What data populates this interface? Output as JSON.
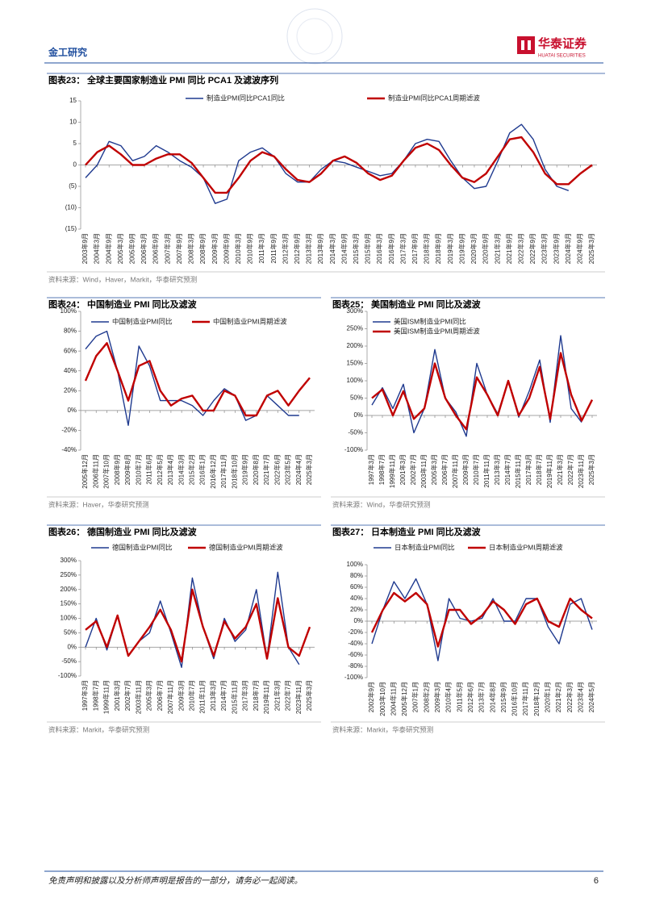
{
  "header": {
    "section": "金工研究",
    "logo_cn": "华泰证券",
    "logo_en": "HUATAI SECURITIES"
  },
  "chart_data": [
    {
      "type": "line",
      "label": "图表23：",
      "title": "全球主要国家制造业 PMI 同比 PCA1 及滤波序列",
      "source": "资料来源：Wind，Haver，Markit，华泰研究预测",
      "categories": [
        "2003年9月",
        "2004年3月",
        "2004年9月",
        "2005年3月",
        "2005年9月",
        "2006年3月",
        "2006年9月",
        "2007年3月",
        "2007年9月",
        "2008年3月",
        "2008年9月",
        "2009年3月",
        "2009年9月",
        "2010年3月",
        "2010年9月",
        "2011年3月",
        "2011年9月",
        "2012年3月",
        "2012年9月",
        "2013年3月",
        "2013年9月",
        "2014年3月",
        "2014年9月",
        "2015年3月",
        "2015年9月",
        "2016年3月",
        "2016年9月",
        "2017年3月",
        "2017年9月",
        "2018年3月",
        "2018年9月",
        "2019年3月",
        "2019年9月",
        "2020年3月",
        "2020年9月",
        "2021年3月",
        "2021年9月",
        "2022年3月",
        "2022年9月",
        "2023年3月",
        "2023年9月",
        "2024年3月",
        "2024年9月",
        "2025年3月"
      ],
      "series": [
        {
          "name": "制造业PMI同比PCA1同比",
          "color": "#1f3a8f",
          "values": [
            -3,
            0,
            5.5,
            4.5,
            1,
            2,
            4.5,
            3,
            1,
            -0.5,
            -3,
            -9,
            -8,
            1,
            3,
            4,
            2,
            -2,
            -4,
            -4,
            -1,
            1,
            0.5,
            -0.5,
            -1.5,
            -2.5,
            -2,
            1,
            5,
            6,
            5.5,
            1,
            -3,
            -5.5,
            -5,
            1,
            7.5,
            9.5,
            6,
            -1,
            -5,
            -6,
            null,
            null
          ]
        },
        {
          "name": "制造业PMI同比PCA1周期滤波",
          "color": "#c00000",
          "values": [
            0,
            3,
            4.5,
            2.5,
            0,
            0,
            1.5,
            2.5,
            2.5,
            0.5,
            -3,
            -6.5,
            -6.5,
            -3,
            1,
            3,
            2,
            -1,
            -3.5,
            -4,
            -2,
            1,
            2,
            0.5,
            -2,
            -3.5,
            -2.5,
            1,
            4,
            5,
            3.5,
            0,
            -3,
            -4,
            -2,
            2,
            6,
            6.5,
            3,
            -2,
            -4.5,
            -4.5,
            -2,
            0
          ]
        }
      ],
      "ylim": [
        -15,
        15
      ],
      "yticks": [
        15,
        10,
        5,
        0,
        {
          "value": -5,
          "label": "(5)"
        },
        {
          "value": -10,
          "label": "(10)"
        },
        {
          "value": -15,
          "label": "(15)"
        }
      ]
    },
    {
      "type": "line",
      "label": "图表24：",
      "title": "中国制造业 PMI 同比及滤波",
      "source": "资料来源：Haver，华泰研究预测",
      "categories": [
        "2005年12月",
        "2006年11月",
        "2007年10月",
        "2008年9月",
        "2009年8月",
        "2010年7月",
        "2011年6月",
        "2012年5月",
        "2013年4月",
        "2014年3月",
        "2015年2月",
        "2016年1月",
        "2016年12月",
        "2017年11月",
        "2018年10月",
        "2019年9月",
        "2020年8月",
        "2021年7月",
        "2022年6月",
        "2023年5月",
        "2024年4月",
        "2025年3月"
      ],
      "series": [
        {
          "name": "中国制造业PMI同比",
          "color": "#1f3a8f",
          "values": [
            62,
            75,
            80,
            40,
            -15,
            65,
            45,
            10,
            10,
            10,
            5,
            -5,
            10,
            22,
            15,
            -10,
            -5,
            15,
            5,
            -5,
            -5,
            null
          ]
        },
        {
          "name": "中国制造业PMI周期滤波",
          "color": "#c00000",
          "values": [
            30,
            55,
            68,
            40,
            10,
            45,
            50,
            20,
            5,
            12,
            15,
            0,
            0,
            20,
            15,
            -5,
            -5,
            15,
            20,
            5,
            20,
            33
          ]
        }
      ],
      "ylim": [
        -40,
        100
      ],
      "yticks": [
        {
          "value": 100,
          "label": "100%"
        },
        {
          "value": 80,
          "label": "80%"
        },
        {
          "value": 60,
          "label": "60%"
        },
        {
          "value": 40,
          "label": "40%"
        },
        {
          "value": 20,
          "label": "20%"
        },
        {
          "value": 0,
          "label": "0%"
        },
        {
          "value": -20,
          "label": "-20%"
        },
        {
          "value": -40,
          "label": "-40%"
        }
      ]
    },
    {
      "type": "line",
      "label": "图表25：",
      "title": "美国制造业 PMI 同比及滤波",
      "source": "资料来源：Wind，华泰研究预测",
      "categories": [
        "1997年3月",
        "1998年7月",
        "1999年11月",
        "2001年3月",
        "2002年7月",
        "2003年11月",
        "2005年3月",
        "2006年7月",
        "2007年11月",
        "2009年3月",
        "2010年7月",
        "2011年11月",
        "2013年3月",
        "2014年7月",
        "2015年11月",
        "2017年3月",
        "2018年7月",
        "2019年11月",
        "2021年3月",
        "2022年7月",
        "2023年11月",
        "2025年3月"
      ],
      "series": [
        {
          "name": "美国ISM制造业PMI同比",
          "color": "#1f3a8f",
          "values": [
            30,
            80,
            20,
            90,
            -50,
            20,
            190,
            50,
            10,
            -60,
            150,
            60,
            5,
            100,
            -5,
            70,
            160,
            -20,
            230,
            20,
            -20,
            null
          ]
        },
        {
          "name": "美国ISM制造业PMI周期滤波",
          "color": "#c00000",
          "values": [
            50,
            75,
            0,
            70,
            -10,
            20,
            150,
            50,
            0,
            -40,
            110,
            60,
            0,
            100,
            0,
            50,
            140,
            -10,
            180,
            60,
            -15,
            45
          ]
        }
      ],
      "ylim": [
        -100,
        300
      ],
      "yticks": [
        {
          "value": 300,
          "label": "300%"
        },
        {
          "value": 250,
          "label": "250%"
        },
        {
          "value": 200,
          "label": "200%"
        },
        {
          "value": 150,
          "label": "150%"
        },
        {
          "value": 100,
          "label": "100%"
        },
        {
          "value": 50,
          "label": "50%"
        },
        {
          "value": 0,
          "label": "0%"
        },
        {
          "value": -50,
          "label": "-50%"
        },
        {
          "value": -100,
          "label": "-100%"
        }
      ]
    },
    {
      "type": "line",
      "label": "图表26：",
      "title": "德国制造业 PMI 同比及滤波",
      "source": "资料来源：Markit，华泰研究预测",
      "categories": [
        "1997年3月",
        "1998年7月",
        "1999年11月",
        "2001年3月",
        "2002年7月",
        "2003年11月",
        "2005年3月",
        "2006年7月",
        "2007年11月",
        "2009年3月",
        "2010年7月",
        "2011年11月",
        "2013年3月",
        "2014年7月",
        "2015年11月",
        "2017年3月",
        "2018年7月",
        "2019年11月",
        "2021年3月",
        "2022年7月",
        "2023年11月",
        "2025年3月"
      ],
      "series": [
        {
          "name": "德国制造业PMI同比",
          "color": "#1f3a8f",
          "values": [
            0,
            100,
            -10,
            110,
            -30,
            20,
            50,
            160,
            50,
            -70,
            240,
            70,
            -40,
            100,
            20,
            60,
            200,
            -40,
            260,
            0,
            -60,
            null
          ]
        },
        {
          "name": "德国制造业PMI周期滤波",
          "color": "#c00000",
          "values": [
            60,
            90,
            0,
            110,
            -30,
            20,
            70,
            130,
            60,
            -50,
            200,
            70,
            -30,
            90,
            30,
            70,
            150,
            -40,
            170,
            0,
            -30,
            70
          ]
        }
      ],
      "ylim": [
        -100,
        300
      ],
      "yticks": [
        {
          "value": 300,
          "label": "300%"
        },
        {
          "value": 250,
          "label": "250%"
        },
        {
          "value": 200,
          "label": "200%"
        },
        {
          "value": 150,
          "label": "150%"
        },
        {
          "value": 100,
          "label": "100%"
        },
        {
          "value": 50,
          "label": "50%"
        },
        {
          "value": 0,
          "label": "0%"
        },
        {
          "value": -50,
          "label": "-50%"
        },
        {
          "value": -100,
          "label": "-100%"
        }
      ]
    },
    {
      "type": "line",
      "label": "图表27：",
      "title": "日本制造业 PMI 同比及滤波",
      "source": "资料来源：Markit，华泰研究预测",
      "categories": [
        "2002年9月",
        "2003年10月",
        "2004年11月",
        "2005年12月",
        "2007年1月",
        "2008年2月",
        "2009年3月",
        "2010年4月",
        "2011年5月",
        "2012年6月",
        "2013年7月",
        "2014年8月",
        "2015年9月",
        "2016年10月",
        "2017年11月",
        "2018年12月",
        "2020年1月",
        "2021年2月",
        "2022年3月",
        "2023年4月",
        "2024年5月"
      ],
      "series": [
        {
          "name": "日本制造业PMI同比",
          "color": "#1f3a8f",
          "values": [
            -40,
            20,
            70,
            40,
            75,
            30,
            -70,
            40,
            5,
            0,
            5,
            40,
            0,
            0,
            40,
            40,
            -10,
            -40,
            30,
            40,
            -15
          ]
        },
        {
          "name": "日本制造业PMI周期滤波",
          "color": "#c00000",
          "values": [
            -20,
            20,
            50,
            35,
            50,
            30,
            -45,
            20,
            20,
            -5,
            10,
            35,
            20,
            -5,
            30,
            40,
            0,
            -10,
            40,
            20,
            5
          ]
        }
      ],
      "ylim": [
        -100,
        100
      ],
      "yticks": [
        {
          "value": 100,
          "label": "100%"
        },
        {
          "value": 80,
          "label": "80%"
        },
        {
          "value": 60,
          "label": "60%"
        },
        {
          "value": 40,
          "label": "40%"
        },
        {
          "value": 20,
          "label": "20%"
        },
        {
          "value": 0,
          "label": "0%"
        },
        {
          "value": -20,
          "label": "-20%"
        },
        {
          "value": -40,
          "label": "-40%"
        },
        {
          "value": -60,
          "label": "-60%"
        },
        {
          "value": -80,
          "label": "-80%"
        },
        {
          "value": -100,
          "label": "-100%"
        }
      ]
    }
  ],
  "footer": {
    "disclaimer": "免责声明和披露以及分析师声明是报告的一部分，请务必一起阅读。",
    "page": 6
  }
}
